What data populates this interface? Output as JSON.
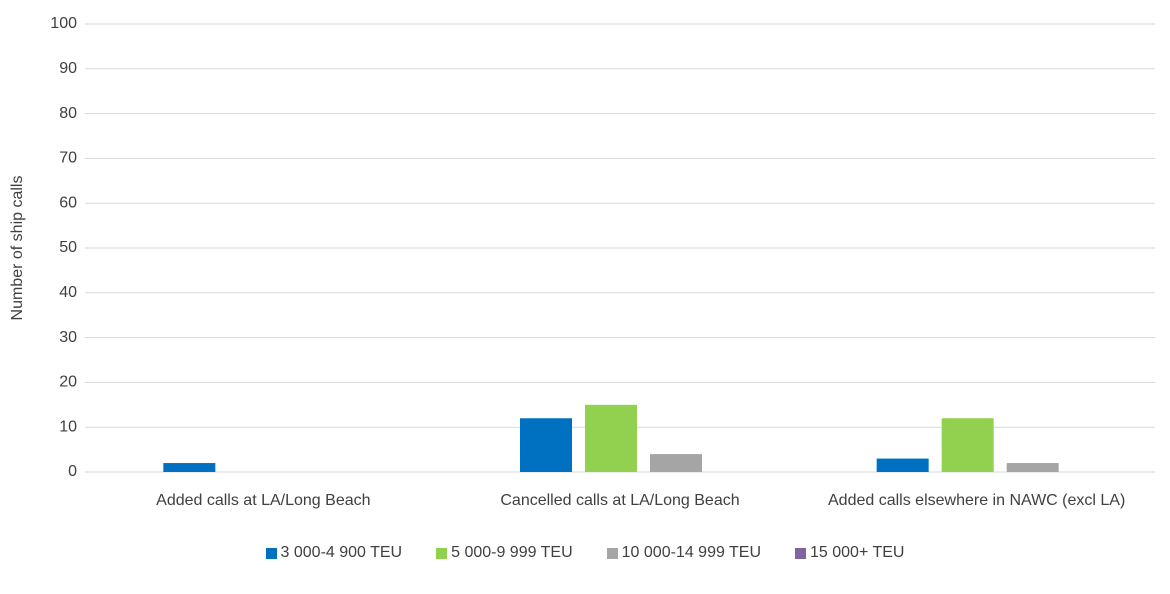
{
  "chart_data": {
    "type": "bar",
    "y_label": "Number of ship calls",
    "categories": [
      "Added calls at LA/Long Beach",
      "Cancelled calls at LA/Long Beach",
      "Added calls elsewhere in NAWC (excl LA)"
    ],
    "series": [
      {
        "name": "3 000-4 900 TEU",
        "color": "#0070c0",
        "values": [
          2,
          12,
          3
        ]
      },
      {
        "name": "5 000-9 999 TEU",
        "color": "#92d050",
        "values": [
          0,
          15,
          12
        ]
      },
      {
        "name": "10 000-14 999 TEU",
        "color": "#a5a5a5",
        "values": [
          0,
          4,
          2
        ]
      },
      {
        "name": "15 000+ TEU",
        "color": "#8064a2",
        "values": [
          0,
          0,
          0
        ]
      }
    ],
    "ylim": [
      0,
      100
    ],
    "yticks": [
      0,
      10,
      20,
      30,
      40,
      50,
      60,
      70,
      80,
      90,
      100
    ],
    "grid": true,
    "legend": "bottom"
  }
}
